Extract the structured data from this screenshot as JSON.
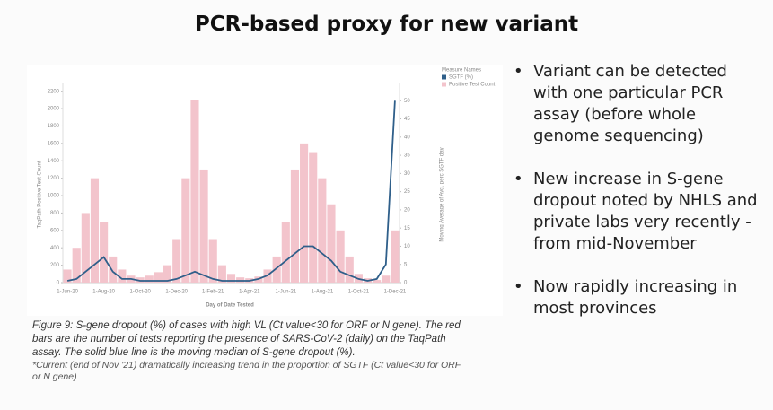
{
  "title": "PCR-based proxy for new variant",
  "chart_data": {
    "type": "bar",
    "categories": [
      "1-Jun-20",
      null,
      null,
      null,
      "1-Aug-20",
      null,
      null,
      null,
      "1-Oct-20",
      null,
      null,
      null,
      "1-Dec-20",
      null,
      null,
      null,
      "1-Feb-21",
      null,
      null,
      null,
      "1-Apr-21",
      null,
      null,
      null,
      "1-Jun-21",
      null,
      null,
      null,
      "1-Aug-21",
      null,
      null,
      null,
      "1-Oct-21",
      null,
      null,
      null,
      "1-Dec-21"
    ],
    "series": [
      {
        "name": "SGTF (%)",
        "type": "line",
        "axis": "y2",
        "color": "#2f5f8a",
        "values": [
          0.5,
          1,
          3,
          5,
          7,
          3,
          1,
          1,
          0.5,
          0.5,
          0.5,
          0.5,
          1,
          2,
          3,
          2,
          1,
          0.5,
          0.5,
          0.5,
          0.5,
          1,
          2,
          4,
          6,
          8,
          10,
          10,
          8,
          6,
          3,
          2,
          1,
          0.5,
          1,
          5,
          50
        ]
      },
      {
        "name": "Positive Test Count",
        "type": "bar",
        "axis": "y",
        "color": "#f3c4cc",
        "values": [
          150,
          400,
          800,
          1200,
          700,
          300,
          150,
          80,
          60,
          80,
          120,
          200,
          500,
          1200,
          2100,
          1300,
          500,
          200,
          100,
          60,
          50,
          70,
          150,
          300,
          700,
          1300,
          1600,
          1500,
          1200,
          900,
          600,
          300,
          100,
          50,
          30,
          80,
          600
        ]
      }
    ],
    "xlabel": "Day of Date Tested",
    "ylabel": "TaqPath Positive Test Count",
    "y2label": "Moving Average of Avg. perc SGTF day",
    "legend_title": "Measure Names",
    "ylim": [
      0,
      2300
    ],
    "yticks": [
      0,
      200,
      400,
      600,
      800,
      1000,
      1200,
      1400,
      1600,
      1800,
      2000,
      2200
    ],
    "y2lim": [
      0,
      55
    ],
    "y2ticks": [
      0,
      5,
      10,
      15,
      20,
      25,
      30,
      35,
      40,
      45,
      50
    ]
  },
  "caption": {
    "text": "Figure 9: S-gene dropout (%) of cases with high VL (Ct value<30 for ORF or N gene). The red bars are the number of tests reporting the presence of SARS-CoV-2 (daily) on the TaqPath assay. The solid blue line is the moving median of S-gene dropout (%).",
    "note": "*Current (end of Nov '21) dramatically increasing trend in the proportion of SGTF (Ct value<30 for ORF or N gene)"
  },
  "bullets": [
    "Variant can be detected with one particular PCR assay (before whole genome sequencing)",
    "New increase in S-gene dropout noted by NHLS and private labs very recently - from mid-November",
    "Now rapidly increasing in most provinces"
  ]
}
